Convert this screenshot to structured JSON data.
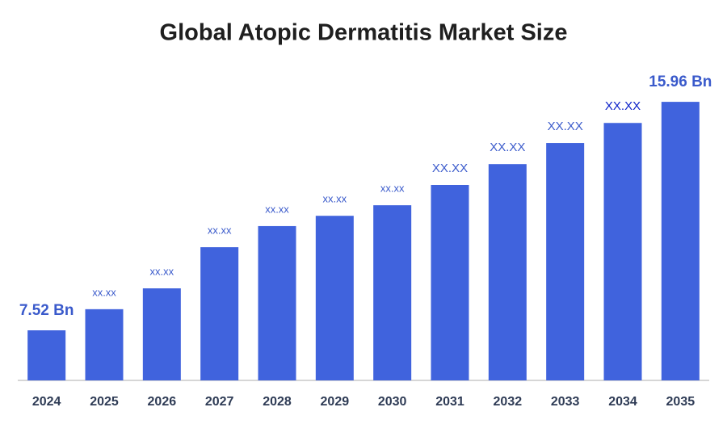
{
  "chart_data": {
    "type": "bar",
    "title": "Global Atopic Dermatitis Market Size",
    "categories": [
      "2024",
      "2025",
      "2026",
      "2027",
      "2028",
      "2029",
      "2030",
      "2031",
      "2032",
      "2033",
      "2034",
      "2035"
    ],
    "values": [
      7.52,
      8.3,
      9.07,
      10.59,
      11.37,
      11.75,
      12.14,
      12.89,
      13.66,
      14.44,
      15.18,
      15.96
    ],
    "value_labels": [
      "7.52 Bn",
      "xx.xx",
      "xx.xx",
      "xx.xx",
      "xx.xx",
      "xx.xx",
      "xx.xx",
      "XX.XX",
      "XX.XX",
      "XX.XX",
      "XX.XX",
      "15.96 Bn"
    ],
    "color": "#4063dd",
    "ylim": [
      5.67,
      16.5
    ]
  }
}
